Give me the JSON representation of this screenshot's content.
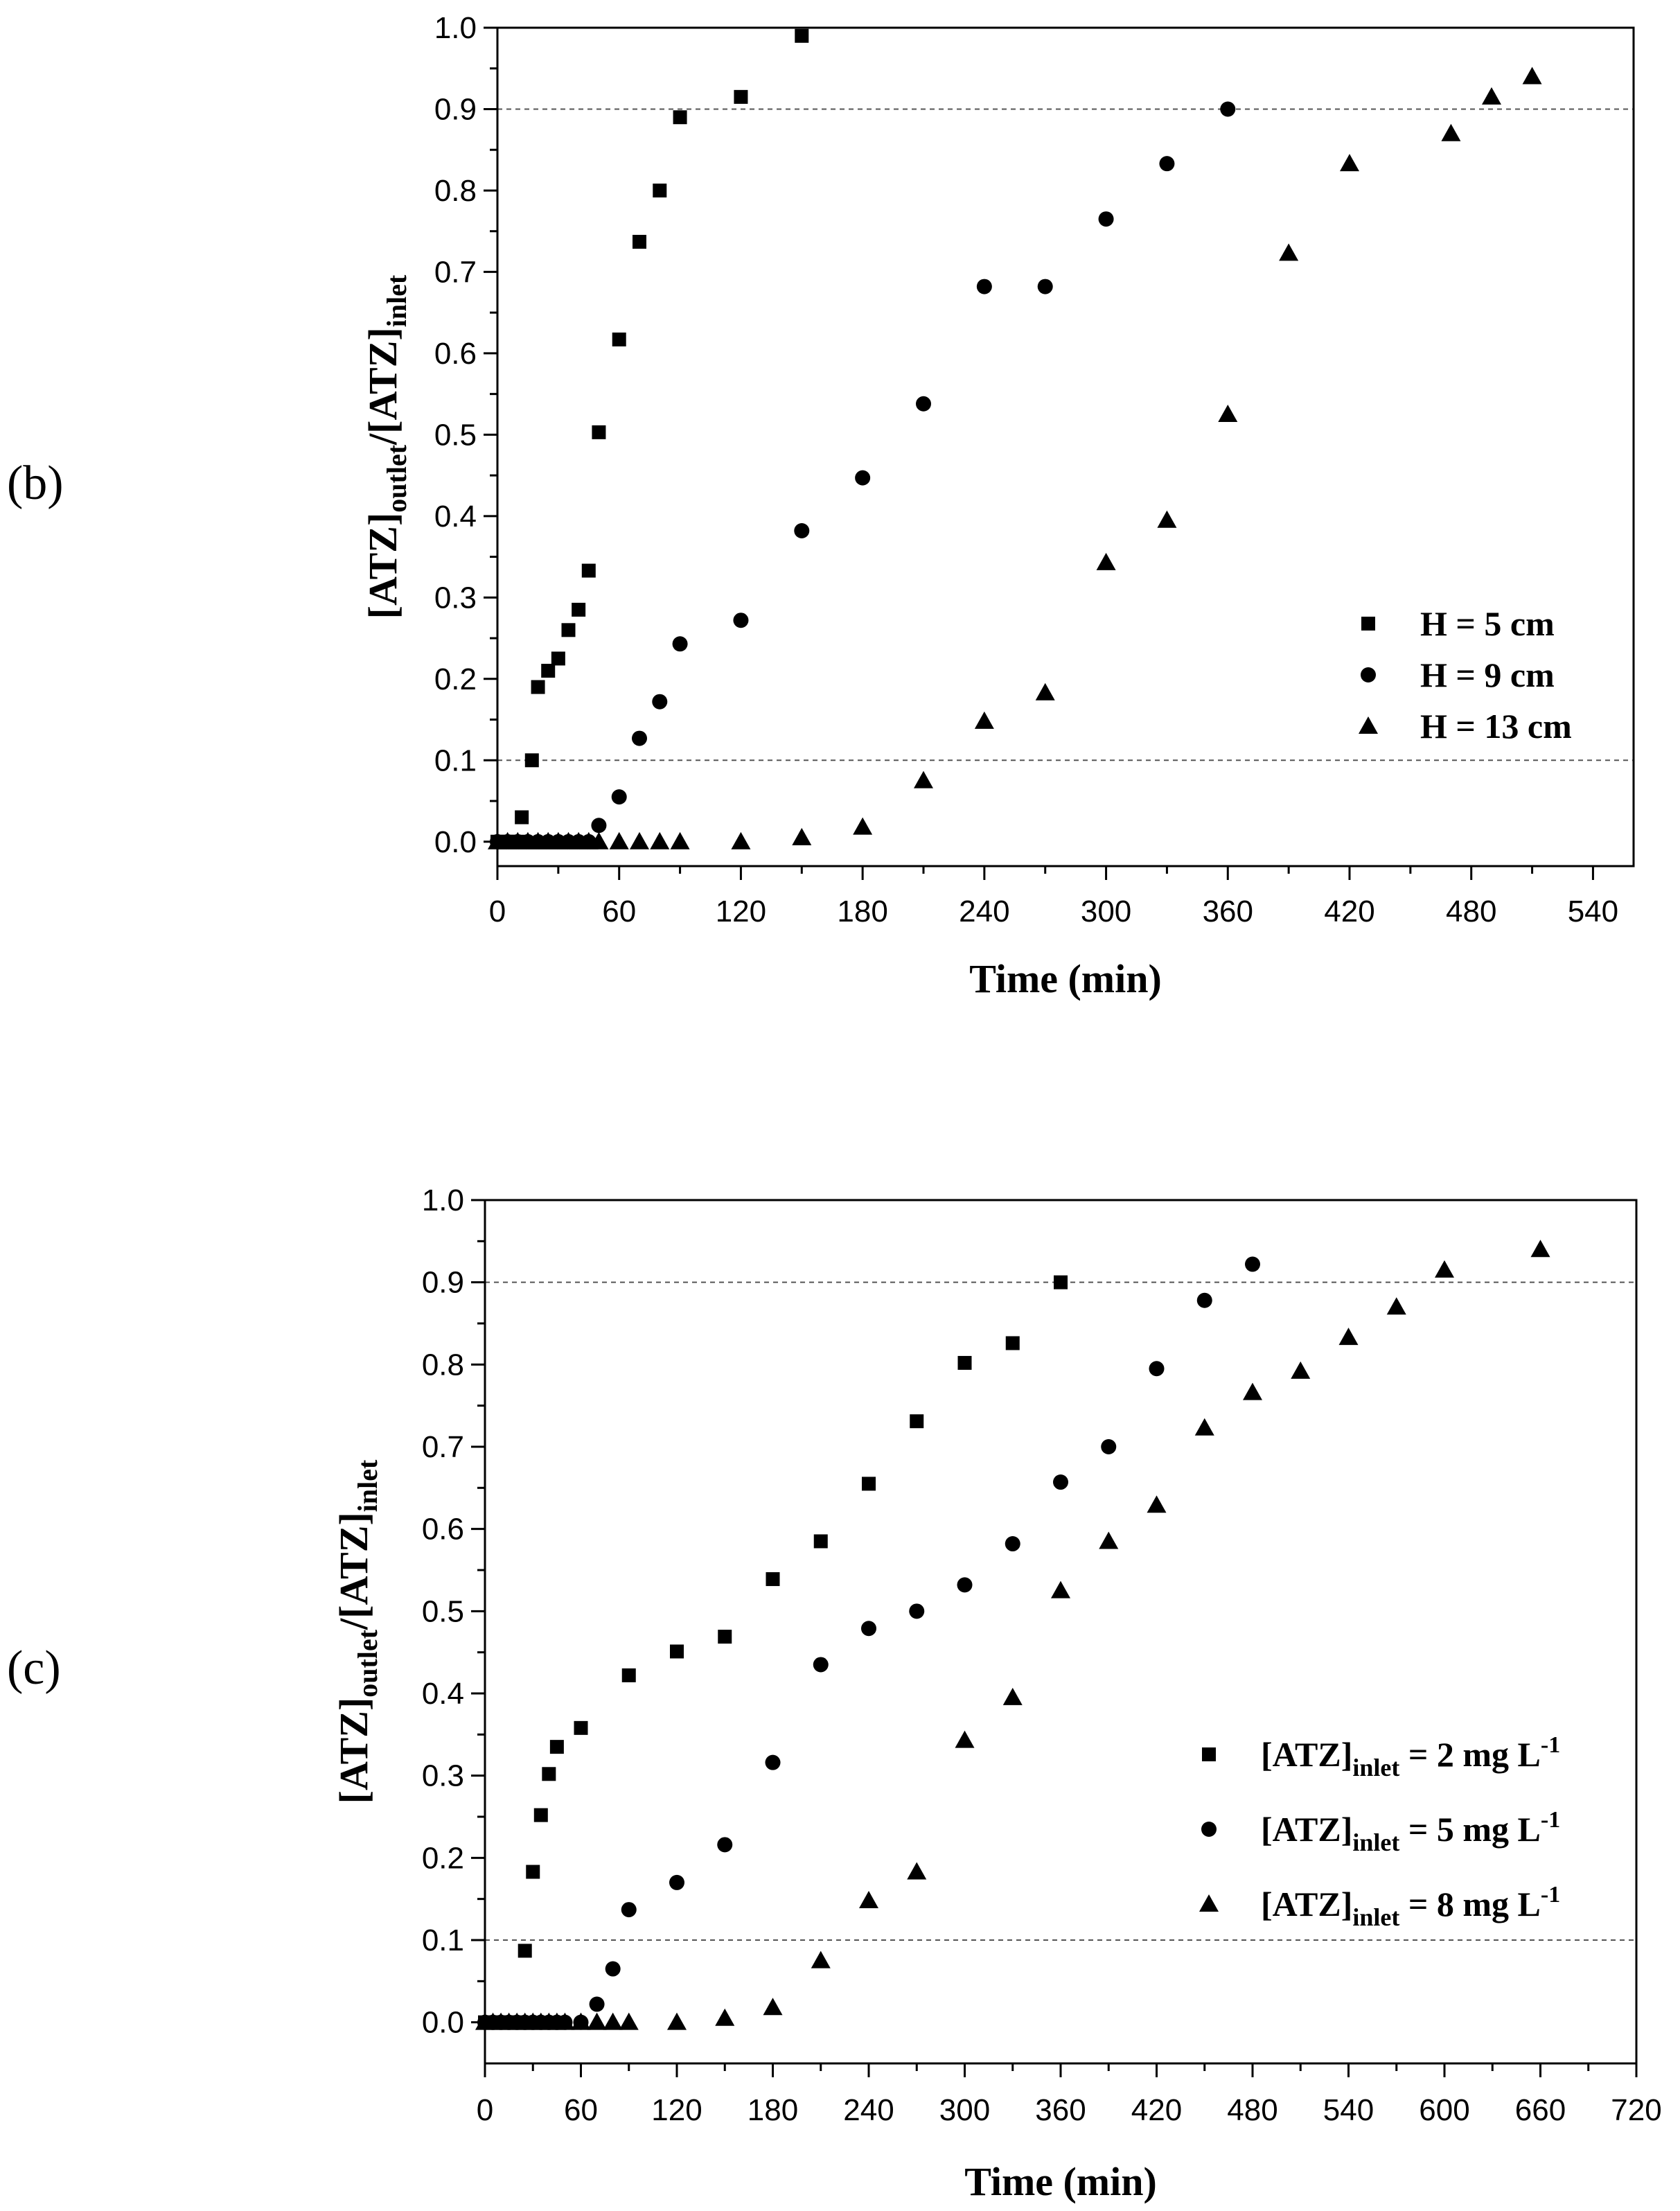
{
  "chart_data": [
    {
      "panel_label": "(b)",
      "type": "scatter",
      "title": "",
      "xlabel": "Time (min)",
      "ylabel": {
        "base": "[ATZ]",
        "sub1": "outlet",
        "mid": "/[ATZ]",
        "sub2": "inlet"
      },
      "xlim": [
        0,
        560
      ],
      "ylim": [
        -0.03,
        1.0
      ],
      "xticks": [
        0,
        60,
        120,
        180,
        240,
        300,
        360,
        420,
        480,
        540
      ],
      "xtick_labels": [
        "0",
        "60",
        "120",
        "180",
        "240",
        "300",
        "360",
        "420",
        "480",
        "540"
      ],
      "yticks": [
        0.0,
        0.1,
        0.2,
        0.3,
        0.4,
        0.5,
        0.6,
        0.7,
        0.8,
        0.9,
        1.0
      ],
      "ytick_labels": [
        "0.0",
        "0.1",
        "0.2",
        "0.3",
        "0.4",
        "0.5",
        "0.6",
        "0.7",
        "0.8",
        "0.9",
        "1.0"
      ],
      "reference_lines": [
        0.1,
        0.9
      ],
      "legend_position": "center-right",
      "series": [
        {
          "name": "H = 5 cm",
          "marker": "square",
          "x": [
            0,
            5,
            10,
            12,
            17,
            20,
            25,
            30,
            35,
            40,
            45,
            50,
            60,
            70,
            80,
            90,
            120,
            150
          ],
          "y": [
            0.0,
            0.0,
            0.0,
            0.03,
            0.1,
            0.19,
            0.21,
            0.225,
            0.26,
            0.285,
            0.333,
            0.503,
            0.617,
            0.737,
            0.8,
            0.89,
            0.915,
            0.99
          ]
        },
        {
          "name": "H = 9 cm",
          "marker": "circle",
          "x": [
            0,
            5,
            10,
            15,
            20,
            25,
            30,
            35,
            40,
            45,
            50,
            60,
            70,
            80,
            90,
            120,
            150,
            180,
            210,
            240,
            270,
            300,
            330,
            360
          ],
          "y": [
            0,
            0,
            0,
            0,
            0,
            0,
            0,
            0,
            0,
            0,
            0.02,
            0.055,
            0.127,
            0.172,
            0.243,
            0.272,
            0.382,
            0.447,
            0.538,
            0.682,
            0.682,
            0.765,
            0.833,
            0.9
          ]
        },
        {
          "name": "H = 13 cm",
          "marker": "triangle",
          "x": [
            0,
            5,
            10,
            15,
            20,
            25,
            30,
            35,
            40,
            45,
            50,
            60,
            70,
            80,
            90,
            120,
            150,
            180,
            210,
            240,
            270,
            300,
            330,
            360,
            390,
            420,
            470,
            490,
            510
          ],
          "y": [
            0,
            0,
            0,
            0,
            0,
            0,
            0,
            0,
            0,
            0,
            0,
            0,
            0,
            0,
            0,
            0,
            0.005,
            0.018,
            0.075,
            0.148,
            0.183,
            0.343,
            0.395,
            0.525,
            0.723,
            0.833,
            0.87,
            0.915,
            0.94
          ]
        }
      ]
    },
    {
      "panel_label": "(c)",
      "type": "scatter",
      "title": "",
      "xlabel": "Time (min)",
      "ylabel": {
        "base": "[ATZ]",
        "sub1": "outlet",
        "mid": "/[ATZ]",
        "sub2": "inlet"
      },
      "xlim": [
        0,
        720
      ],
      "ylim": [
        -0.05,
        1.0
      ],
      "xticks": [
        0,
        60,
        120,
        180,
        240,
        300,
        360,
        420,
        480,
        540,
        600,
        660,
        720
      ],
      "xtick_labels": [
        "0",
        "60",
        "120",
        "180",
        "240",
        "300",
        "360",
        "420",
        "480",
        "540",
        "600",
        "660",
        "720"
      ],
      "yticks": [
        0.0,
        0.1,
        0.2,
        0.3,
        0.4,
        0.5,
        0.6,
        0.7,
        0.8,
        0.9,
        1.0
      ],
      "ytick_labels": [
        "0.0",
        "0.1",
        "0.2",
        "0.3",
        "0.4",
        "0.5",
        "0.6",
        "0.7",
        "0.8",
        "0.9",
        "1.0"
      ],
      "reference_lines": [
        0.1,
        0.9
      ],
      "legend_position": "center-right",
      "series": [
        {
          "name": "[ATZ]inlet = 2 mg L-1",
          "label": {
            "base": "[ATZ]",
            "sub": "inlet",
            "rest": " = 2 mg L",
            "sup": "-1"
          },
          "marker": "square",
          "x": [
            0,
            5,
            10,
            15,
            20,
            25,
            30,
            35,
            40,
            45,
            60,
            90,
            120,
            150,
            180,
            210,
            240,
            270,
            300,
            330,
            360
          ],
          "y": [
            0,
            0,
            0,
            0,
            0,
            0.087,
            0.183,
            0.252,
            0.302,
            0.335,
            0.358,
            0.422,
            0.451,
            0.469,
            0.539,
            0.585,
            0.655,
            0.731,
            0.802,
            0.826,
            0.9
          ]
        },
        {
          "name": "[ATZ]inlet = 5 mg L-1",
          "label": {
            "base": "[ATZ]",
            "sub": "inlet",
            "rest": " = 5 mg L",
            "sup": "-1"
          },
          "marker": "circle",
          "x": [
            0,
            5,
            10,
            15,
            20,
            25,
            30,
            35,
            40,
            45,
            50,
            60,
            70,
            80,
            90,
            120,
            150,
            180,
            210,
            240,
            270,
            300,
            330,
            360,
            390,
            420,
            450,
            480
          ],
          "y": [
            0,
            0,
            0,
            0,
            0,
            0,
            0,
            0,
            0,
            0,
            0,
            0,
            0.022,
            0.065,
            0.137,
            0.17,
            0.216,
            0.316,
            0.435,
            0.479,
            0.5,
            0.532,
            0.582,
            0.657,
            0.7,
            0.795,
            0.878,
            0.922
          ]
        },
        {
          "name": "[ATZ]inlet = 8 mg L-1",
          "label": {
            "base": "[ATZ]",
            "sub": "inlet",
            "rest": " = 8 mg L",
            "sup": "-1"
          },
          "marker": "triangle",
          "x": [
            0,
            5,
            10,
            15,
            20,
            25,
            30,
            35,
            40,
            45,
            50,
            60,
            70,
            80,
            90,
            120,
            150,
            180,
            210,
            240,
            270,
            300,
            330,
            360,
            390,
            420,
            450,
            480,
            510,
            540,
            570,
            600,
            660
          ],
          "y": [
            0,
            0,
            0,
            0,
            0,
            0,
            0,
            0,
            0,
            0,
            0,
            0,
            0,
            0,
            0,
            0,
            0.005,
            0.018,
            0.075,
            0.148,
            0.183,
            0.343,
            0.395,
            0.525,
            0.585,
            0.629,
            0.723,
            0.766,
            0.792,
            0.833,
            0.87,
            0.915,
            0.94
          ]
        }
      ]
    }
  ]
}
